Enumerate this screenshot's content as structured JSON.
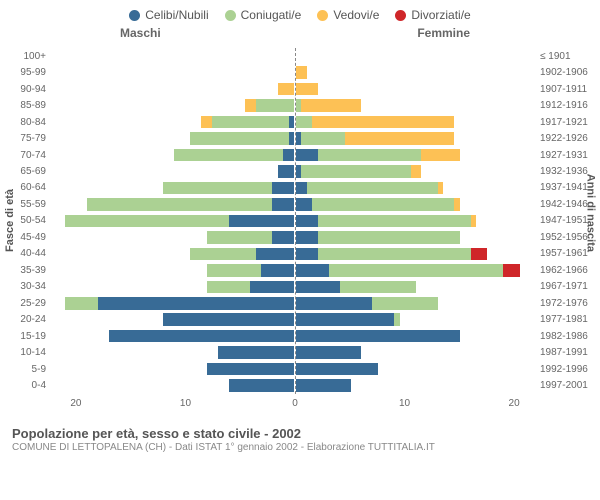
{
  "chart": {
    "type": "population-pyramid",
    "legend": [
      {
        "label": "Celibi/Nubili",
        "color": "#386b96"
      },
      {
        "label": "Coniugati/e",
        "color": "#abd193"
      },
      {
        "label": "Vedovi/e",
        "color": "#fdc155"
      },
      {
        "label": "Divorziati/e",
        "color": "#cf2629"
      }
    ],
    "header_male": "Maschi",
    "header_female": "Femmine",
    "ylabel_left": "Fasce di età",
    "ylabel_right": "Anni di nascita",
    "x_max": 22,
    "x_ticks": [
      20,
      10,
      0,
      10,
      20
    ],
    "background": "#ffffff",
    "grid_color": "#cccccc",
    "label_color": "#666666",
    "label_fontsize": 10,
    "rows": [
      {
        "age": "100+",
        "birth": "≤ 1901",
        "m": [
          0,
          0,
          0,
          0
        ],
        "f": [
          0,
          0,
          0,
          0
        ]
      },
      {
        "age": "95-99",
        "birth": "1902-1906",
        "m": [
          0,
          0,
          0,
          0
        ],
        "f": [
          0,
          0,
          1,
          0
        ]
      },
      {
        "age": "90-94",
        "birth": "1907-1911",
        "m": [
          0,
          0,
          1.5,
          0
        ],
        "f": [
          0,
          0,
          2,
          0
        ]
      },
      {
        "age": "85-89",
        "birth": "1912-1916",
        "m": [
          0,
          3.5,
          1,
          0
        ],
        "f": [
          0,
          0.5,
          5.5,
          0
        ]
      },
      {
        "age": "80-84",
        "birth": "1917-1921",
        "m": [
          0.5,
          7,
          1,
          0
        ],
        "f": [
          0,
          1.5,
          13,
          0
        ]
      },
      {
        "age": "75-79",
        "birth": "1922-1926",
        "m": [
          0.5,
          9,
          0,
          0
        ],
        "f": [
          0.5,
          4,
          10,
          0
        ]
      },
      {
        "age": "70-74",
        "birth": "1927-1931",
        "m": [
          1,
          10,
          0,
          0
        ],
        "f": [
          2,
          9.5,
          3.5,
          0
        ]
      },
      {
        "age": "65-69",
        "birth": "1932-1936",
        "m": [
          1.5,
          0,
          0,
          0
        ],
        "f": [
          0.5,
          10,
          1,
          0
        ]
      },
      {
        "age": "60-64",
        "birth": "1937-1941",
        "m": [
          2,
          10,
          0,
          0
        ],
        "f": [
          1,
          12,
          0.5,
          0
        ]
      },
      {
        "age": "55-59",
        "birth": "1942-1946",
        "m": [
          2,
          17,
          0,
          0
        ],
        "f": [
          1.5,
          13,
          0.5,
          0
        ]
      },
      {
        "age": "50-54",
        "birth": "1947-1951",
        "m": [
          6,
          15,
          0,
          0
        ],
        "f": [
          2,
          14,
          0.5,
          0
        ]
      },
      {
        "age": "45-49",
        "birth": "1952-1956",
        "m": [
          2,
          6,
          0,
          0
        ],
        "f": [
          2,
          13,
          0,
          0
        ]
      },
      {
        "age": "40-44",
        "birth": "1957-1961",
        "m": [
          3.5,
          6,
          0,
          0
        ],
        "f": [
          2,
          14,
          0,
          1.5
        ]
      },
      {
        "age": "35-39",
        "birth": "1962-1966",
        "m": [
          3,
          5,
          0,
          0
        ],
        "f": [
          3,
          16,
          0,
          1.5
        ]
      },
      {
        "age": "30-34",
        "birth": "1967-1971",
        "m": [
          4,
          4,
          0,
          0
        ],
        "f": [
          4,
          7,
          0,
          0
        ]
      },
      {
        "age": "25-29",
        "birth": "1972-1976",
        "m": [
          18,
          3,
          0,
          0
        ],
        "f": [
          7,
          6,
          0,
          0
        ]
      },
      {
        "age": "20-24",
        "birth": "1977-1981",
        "m": [
          12,
          0,
          0,
          0
        ],
        "f": [
          9,
          0.5,
          0,
          0
        ]
      },
      {
        "age": "15-19",
        "birth": "1982-1986",
        "m": [
          17,
          0,
          0,
          0
        ],
        "f": [
          15,
          0,
          0,
          0
        ]
      },
      {
        "age": "10-14",
        "birth": "1987-1991",
        "m": [
          7,
          0,
          0,
          0
        ],
        "f": [
          6,
          0,
          0,
          0
        ]
      },
      {
        "age": "5-9",
        "birth": "1992-1996",
        "m": [
          8,
          0,
          0,
          0
        ],
        "f": [
          7.5,
          0,
          0,
          0
        ]
      },
      {
        "age": "0-4",
        "birth": "1997-2001",
        "m": [
          6,
          0,
          0,
          0
        ],
        "f": [
          5,
          0,
          0,
          0
        ]
      }
    ]
  },
  "title": "Popolazione per età, sesso e stato civile - 2002",
  "source": "COMUNE DI LETTOPALENA (CH) - Dati ISTAT 1° gennaio 2002 - Elaborazione TUTTITALIA.IT"
}
